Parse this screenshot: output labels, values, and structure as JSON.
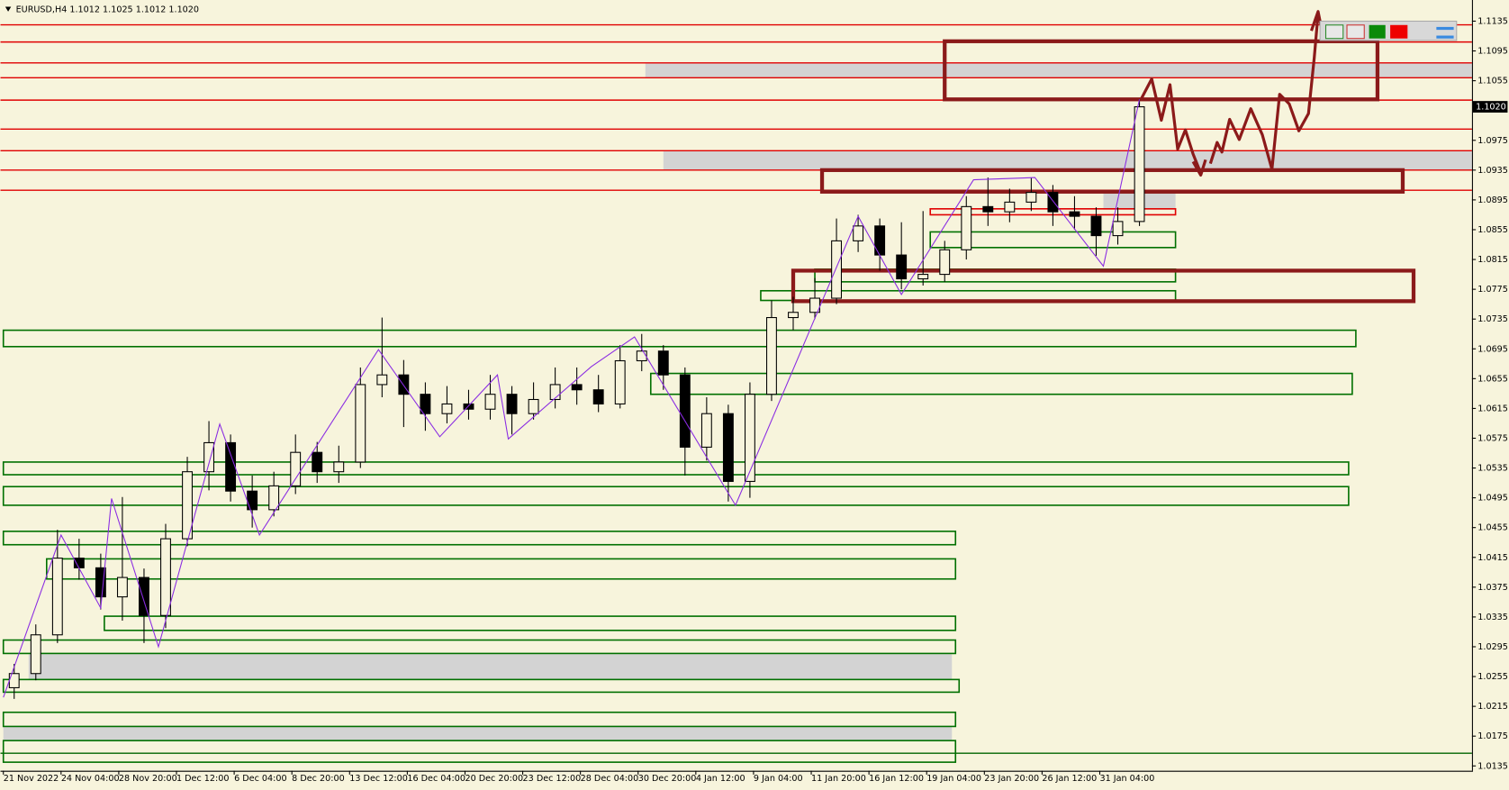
{
  "chart_data": {
    "type": "candlestick",
    "title": "EURUSD,H4  1.1012 1.1025 1.1012 1.1020",
    "xlim": [
      -0.8,
      407.2
    ],
    "ylim": [
      1.01285,
      1.11634
    ],
    "yticks": [
      1.1135,
      1.1095,
      1.1055,
      1.0975,
      1.0935,
      1.0895,
      1.0855,
      1.0815,
      1.0775,
      1.0735,
      1.0695,
      1.0655,
      1.0615,
      1.0575,
      1.0535,
      1.0495,
      1.0455,
      1.0415,
      1.0375,
      1.0335,
      1.0295,
      1.0255,
      1.0215,
      1.0175,
      1.0135
    ],
    "xticks": [
      {
        "value": 0,
        "label": "21 Nov 2022"
      },
      {
        "value": 16,
        "label": "24 Nov 04:00"
      },
      {
        "value": 32,
        "label": "28 Nov 20:00"
      },
      {
        "value": 48,
        "label": "1 Dec 12:00"
      },
      {
        "value": 64,
        "label": "6 Dec 04:00"
      },
      {
        "value": 80,
        "label": "8 Dec 20:00"
      },
      {
        "value": 96,
        "label": "13 Dec 12:00"
      },
      {
        "value": 112,
        "label": "16 Dec 04:00"
      },
      {
        "value": 128,
        "label": "20 Dec 20:00"
      },
      {
        "value": 144,
        "label": "23 Dec 12:00"
      },
      {
        "value": 160,
        "label": "28 Dec 04:00"
      },
      {
        "value": 176,
        "label": "30 Dec 20:00"
      },
      {
        "value": 192,
        "label": "4 Jan 12:00"
      },
      {
        "value": 208,
        "label": "9 Jan 04:00"
      },
      {
        "value": 224,
        "label": "11 Jan 20:00"
      },
      {
        "value": 240,
        "label": "16 Jan 12:00"
      },
      {
        "value": 256,
        "label": "19 Jan 04:00"
      },
      {
        "value": 272,
        "label": "23 Jan 20:00"
      },
      {
        "value": 288,
        "label": "26 Jan 12:00"
      },
      {
        "value": 304,
        "label": "31 Jan 04:00"
      }
    ],
    "price_label": {
      "value": 1.102,
      "label": "1.1020"
    },
    "up_color": "#f7f4dc",
    "down_color": "#000000",
    "x": [
      3,
      9,
      15,
      21,
      27,
      33,
      39,
      45,
      51,
      57,
      63,
      69,
      75,
      81,
      87,
      93,
      99,
      105,
      111,
      117,
      123,
      129,
      135,
      141,
      147,
      153,
      159,
      165,
      171,
      177,
      183,
      189,
      195,
      201,
      207,
      213,
      219,
      225,
      231,
      237,
      243,
      249,
      255,
      261,
      267,
      273,
      279,
      285,
      291,
      297,
      303,
      309,
      315
    ],
    "ohlc": [
      [
        1.024,
        1.0272,
        1.0225,
        1.0259
      ],
      [
        1.0259,
        1.0325,
        1.025,
        1.0311
      ],
      [
        1.0311,
        1.0452,
        1.03,
        1.0414
      ],
      [
        1.0414,
        1.044,
        1.0385,
        1.0401
      ],
      [
        1.0401,
        1.042,
        1.0345,
        1.0362
      ],
      [
        1.0362,
        1.0496,
        1.033,
        1.0388
      ],
      [
        1.0388,
        1.04,
        1.03,
        1.0337
      ],
      [
        1.0337,
        1.046,
        1.032,
        1.044
      ],
      [
        1.044,
        1.055,
        1.043,
        1.053
      ],
      [
        1.053,
        1.0598,
        1.0505,
        1.0569
      ],
      [
        1.0569,
        1.058,
        1.049,
        1.0504
      ],
      [
        1.0504,
        1.0525,
        1.0455,
        1.0479
      ],
      [
        1.0479,
        1.053,
        1.047,
        1.0511
      ],
      [
        1.0511,
        1.058,
        1.05,
        1.0556
      ],
      [
        1.0556,
        1.057,
        1.0515,
        1.053
      ],
      [
        1.053,
        1.0565,
        1.0515,
        1.0543
      ],
      [
        1.0543,
        1.067,
        1.0535,
        1.0647
      ],
      [
        1.0647,
        1.0737,
        1.063,
        1.066
      ],
      [
        1.066,
        1.068,
        1.059,
        1.0634
      ],
      [
        1.0634,
        1.065,
        1.0585,
        1.0608
      ],
      [
        1.0608,
        1.0645,
        1.0595,
        1.0621
      ],
      [
        1.0621,
        1.064,
        1.06,
        1.0614
      ],
      [
        1.0614,
        1.066,
        1.06,
        1.0634
      ],
      [
        1.0634,
        1.0645,
        1.058,
        1.0608
      ],
      [
        1.0608,
        1.065,
        1.06,
        1.0627
      ],
      [
        1.0627,
        1.067,
        1.0615,
        1.0647
      ],
      [
        1.0647,
        1.067,
        1.062,
        1.064
      ],
      [
        1.064,
        1.066,
        1.061,
        1.0621
      ],
      [
        1.0621,
        1.07,
        1.0615,
        1.0679
      ],
      [
        1.0679,
        1.0715,
        1.0665,
        1.0692
      ],
      [
        1.0692,
        1.07,
        1.064,
        1.066
      ],
      [
        1.066,
        1.067,
        1.0525,
        1.0563
      ],
      [
        1.0563,
        1.063,
        1.0545,
        1.0608
      ],
      [
        1.0608,
        1.062,
        1.049,
        1.0517
      ],
      [
        1.0517,
        1.065,
        1.0495,
        1.0634
      ],
      [
        1.0634,
        1.076,
        1.0625,
        1.0737
      ],
      [
        1.0737,
        1.0765,
        1.072,
        1.0744
      ],
      [
        1.0744,
        1.079,
        1.0735,
        1.0763
      ],
      [
        1.0763,
        1.087,
        1.0755,
        1.084
      ],
      [
        1.084,
        1.0875,
        1.0825,
        1.086
      ],
      [
        1.086,
        1.087,
        1.08,
        1.0821
      ],
      [
        1.0821,
        1.0865,
        1.0775,
        1.0789
      ],
      [
        1.0789,
        1.088,
        1.078,
        1.0795
      ],
      [
        1.0795,
        1.084,
        1.0785,
        1.0828
      ],
      [
        1.0828,
        1.09,
        1.0815,
        1.0886
      ],
      [
        1.0886,
        1.0925,
        1.086,
        1.0879
      ],
      [
        1.0879,
        1.091,
        1.0865,
        1.0892
      ],
      [
        1.0892,
        1.0925,
        1.088,
        1.0905
      ],
      [
        1.0905,
        1.0915,
        1.086,
        1.0879
      ],
      [
        1.0879,
        1.09,
        1.0855,
        1.0873
      ],
      [
        1.0873,
        1.0885,
        1.082,
        1.0847
      ],
      [
        1.0847,
        1.0885,
        1.0835,
        1.0866
      ],
      [
        1.0866,
        1.103,
        1.086,
        1.102
      ]
    ],
    "zigzag": {
      "color": "#8a2be2",
      "x": [
        0,
        16,
        27,
        30,
        43,
        60,
        71,
        104,
        121,
        137,
        140,
        163,
        175,
        203,
        237,
        249,
        269,
        286,
        305,
        315
      ],
      "values": [
        1.0227,
        1.0445,
        1.0347,
        1.0494,
        1.0295,
        1.0594,
        1.0445,
        1.0694,
        1.0577,
        1.066,
        1.0574,
        1.0671,
        1.0711,
        1.0485,
        1.0873,
        1.0768,
        1.0922,
        1.0925,
        1.0806,
        1.103
      ]
    },
    "hlines": [
      {
        "value": 1.113,
        "color": "#e00000"
      },
      {
        "value": 1.1107,
        "color": "#e00000"
      },
      {
        "value": 1.1079,
        "color": "#e00000"
      },
      {
        "value": 1.1059,
        "color": "#e00000"
      },
      {
        "value": 1.1029,
        "color": "#e00000"
      },
      {
        "value": 1.099,
        "color": "#e00000"
      },
      {
        "value": 1.0961,
        "color": "#e00000"
      },
      {
        "value": 1.0935,
        "color": "#e00000"
      },
      {
        "value": 1.0908,
        "color": "#e00000"
      },
      {
        "value": 1.0152,
        "color": "#006400"
      }
    ],
    "bands": [
      {
        "x": [
          178,
          407.2
        ],
        "y": [
          1.1059,
          1.1079
        ],
        "color": "#d3d3d3"
      },
      {
        "x": [
          183,
          407.2
        ],
        "y": [
          1.0935,
          1.0961
        ],
        "color": "#d3d3d3"
      },
      {
        "x": [
          7,
          263
        ],
        "y": [
          1.0251,
          1.0285
        ],
        "color": "#d3d3d3"
      },
      {
        "x": [
          0,
          263
        ],
        "y": [
          1.0169,
          1.0188
        ],
        "color": "#d3d3d3"
      },
      {
        "x": [
          305,
          325
        ],
        "y": [
          1.0882,
          1.0905
        ],
        "color": "#d3d3d3"
      }
    ],
    "zones": [
      {
        "x": [
          0,
          375
        ],
        "y": [
          1.0698,
          1.072
        ],
        "color": "#007000",
        "width": 1.5
      },
      {
        "x": [
          179.5,
          374
        ],
        "y": [
          1.0634,
          1.0662
        ],
        "color": "#007000",
        "width": 1.5
      },
      {
        "x": [
          0,
          373
        ],
        "y": [
          1.0526,
          1.0543
        ],
        "color": "#007000",
        "width": 1.5
      },
      {
        "x": [
          0,
          373
        ],
        "y": [
          1.0485,
          1.051
        ],
        "color": "#007000",
        "width": 1.5
      },
      {
        "x": [
          0,
          264
        ],
        "y": [
          1.0432,
          1.045
        ],
        "color": "#007000",
        "width": 1.5
      },
      {
        "x": [
          12,
          264
        ],
        "y": [
          1.0386,
          1.0413
        ],
        "color": "#007000",
        "width": 1.5
      },
      {
        "x": [
          28,
          264
        ],
        "y": [
          1.0317,
          1.0336
        ],
        "color": "#007000",
        "width": 1.5
      },
      {
        "x": [
          0,
          264
        ],
        "y": [
          1.0286,
          1.0304
        ],
        "color": "#007000",
        "width": 1.5
      },
      {
        "x": [
          0,
          265
        ],
        "y": [
          1.0234,
          1.0251
        ],
        "color": "#007000",
        "width": 1.5
      },
      {
        "x": [
          0,
          264
        ],
        "y": [
          1.0188,
          1.0207
        ],
        "color": "#007000",
        "width": 1.5
      },
      {
        "x": [
          0,
          264
        ],
        "y": [
          1.014,
          1.0169
        ],
        "color": "#007000",
        "width": 1.5
      },
      {
        "x": [
          257,
          325
        ],
        "y": [
          1.0831,
          1.0852
        ],
        "color": "#007000",
        "width": 1.5
      },
      {
        "x": [
          225,
          325
        ],
        "y": [
          1.0785,
          1.0802
        ],
        "color": "#007000",
        "width": 1.5
      },
      {
        "x": [
          210,
          325
        ],
        "y": [
          1.076,
          1.0773
        ],
        "color": "#007000",
        "width": 1.5
      },
      {
        "x": [
          257,
          325
        ],
        "y": [
          1.0875,
          1.0883
        ],
        "color": "#e00000",
        "width": 1.5
      },
      {
        "x": [
          261,
          381
        ],
        "y": [
          1.103,
          1.1108
        ],
        "color": "#8b1a1a",
        "width": 4
      },
      {
        "x": [
          227,
          388
        ],
        "y": [
          1.0906,
          1.0935
        ],
        "color": "#8b1a1a",
        "width": 4
      },
      {
        "x": [
          219,
          391
        ],
        "y": [
          1.0759,
          1.08
        ],
        "color": "#8b1a1a",
        "width": 4
      }
    ]
  }
}
